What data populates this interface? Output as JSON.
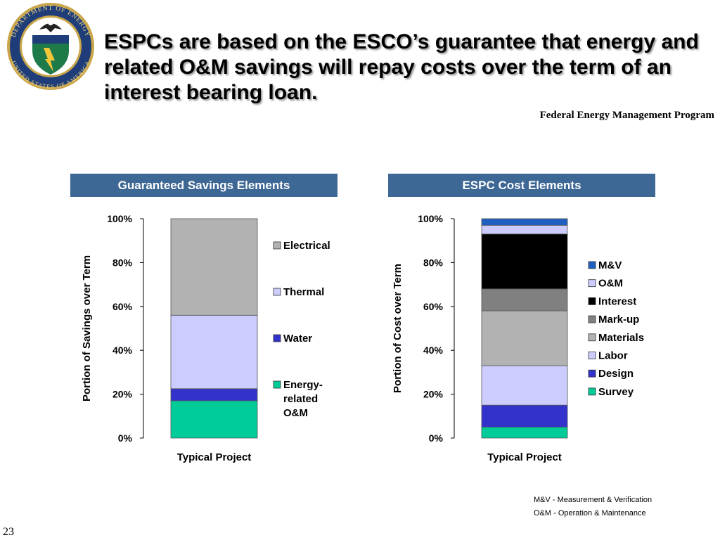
{
  "slide": {
    "title": "ESPCs are based on the ESCO’s guarantee that energy and related O&M savings will repay costs over the term of an interest bearing loan.",
    "program": "Federal Energy Management Program",
    "page_number": "23",
    "footnotes": [
      "M&V - Measurement & Verification",
      "O&M - Operation & Maintenance"
    ],
    "seal": {
      "top_text": "DEPARTMENT OF ENERGY",
      "bottom_text": "UNITED STATES OF AMERICA"
    }
  },
  "colors": {
    "header_bg": "#3d6794",
    "M&V": "#1f5fbf",
    "O&M": "#ccccff",
    "Interest": "#000000",
    "Mark-up": "#808080",
    "Materials": "#b2b2b2",
    "Labor": "#ccccff",
    "Design": "#3333cc",
    "Survey": "#00cc99",
    "Electrical": "#b2b2b2",
    "Thermal": "#ccccff",
    "Water": "#3333cc",
    "Energy-related O&M": "#00cc99"
  },
  "chart_data": [
    {
      "type": "bar",
      "stacked": true,
      "title": "Guaranteed Savings Elements",
      "xlabel": "",
      "ylabel": "Portion of Savings over Term",
      "categories": [
        "Typical Project"
      ],
      "ylim": [
        0,
        100
      ],
      "yticks": [
        "0%",
        "20%",
        "40%",
        "60%",
        "80%",
        "100%"
      ],
      "legend_position": "right",
      "series": [
        {
          "name": "Energy-related O&M",
          "values": [
            17
          ]
        },
        {
          "name": "Water",
          "values": [
            5.5
          ]
        },
        {
          "name": "Thermal",
          "values": [
            33.5
          ]
        },
        {
          "name": "Electrical",
          "values": [
            44
          ]
        }
      ]
    },
    {
      "type": "bar",
      "stacked": true,
      "title": "ESPC Cost Elements",
      "xlabel": "",
      "ylabel": "Portion of Cost over Term",
      "categories": [
        "Typical Project"
      ],
      "ylim": [
        0,
        100
      ],
      "yticks": [
        "0%",
        "20%",
        "40%",
        "60%",
        "80%",
        "100%"
      ],
      "legend_position": "right",
      "series": [
        {
          "name": "Survey",
          "values": [
            5
          ]
        },
        {
          "name": "Design",
          "values": [
            10
          ]
        },
        {
          "name": "Labor",
          "values": [
            18
          ]
        },
        {
          "name": "Materials",
          "values": [
            25
          ]
        },
        {
          "name": "Mark-up",
          "values": [
            10
          ]
        },
        {
          "name": "Interest",
          "values": [
            25
          ]
        },
        {
          "name": "O&M",
          "values": [
            4
          ]
        },
        {
          "name": "M&V",
          "values": [
            3
          ]
        }
      ]
    }
  ]
}
